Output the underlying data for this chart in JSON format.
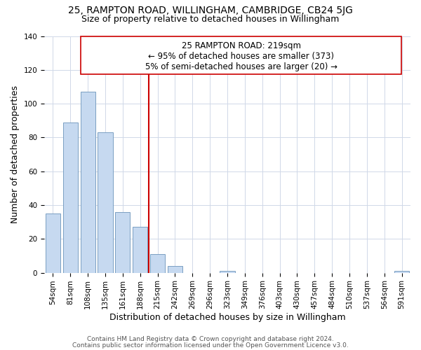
{
  "title": "25, RAMPTON ROAD, WILLINGHAM, CAMBRIDGE, CB24 5JG",
  "subtitle": "Size of property relative to detached houses in Willingham",
  "xlabel": "Distribution of detached houses by size in Willingham",
  "ylabel": "Number of detached properties",
  "bar_labels": [
    "54sqm",
    "81sqm",
    "108sqm",
    "135sqm",
    "161sqm",
    "188sqm",
    "215sqm",
    "242sqm",
    "269sqm",
    "296sqm",
    "323sqm",
    "349sqm",
    "376sqm",
    "403sqm",
    "430sqm",
    "457sqm",
    "484sqm",
    "510sqm",
    "537sqm",
    "564sqm",
    "591sqm"
  ],
  "bar_values": [
    35,
    89,
    107,
    83,
    36,
    27,
    11,
    4,
    0,
    0,
    1,
    0,
    0,
    0,
    0,
    0,
    0,
    0,
    0,
    0,
    1
  ],
  "bar_color": "#c6d9f0",
  "bar_edge_color": "#7a9fc2",
  "vline_color": "#cc0000",
  "annotation_title": "25 RAMPTON ROAD: 219sqm",
  "annotation_line1": "← 95% of detached houses are smaller (373)",
  "annotation_line2": "5% of semi-detached houses are larger (20) →",
  "annotation_box_color": "#ffffff",
  "annotation_box_edge": "#cc0000",
  "ylim": [
    0,
    140
  ],
  "yticks": [
    0,
    20,
    40,
    60,
    80,
    100,
    120,
    140
  ],
  "footnote1": "Contains HM Land Registry data © Crown copyright and database right 2024.",
  "footnote2": "Contains public sector information licensed under the Open Government Licence v3.0.",
  "title_fontsize": 10,
  "subtitle_fontsize": 9,
  "axis_label_fontsize": 9,
  "tick_fontsize": 7.5,
  "annotation_fontsize": 8.5,
  "footnote_fontsize": 6.5
}
